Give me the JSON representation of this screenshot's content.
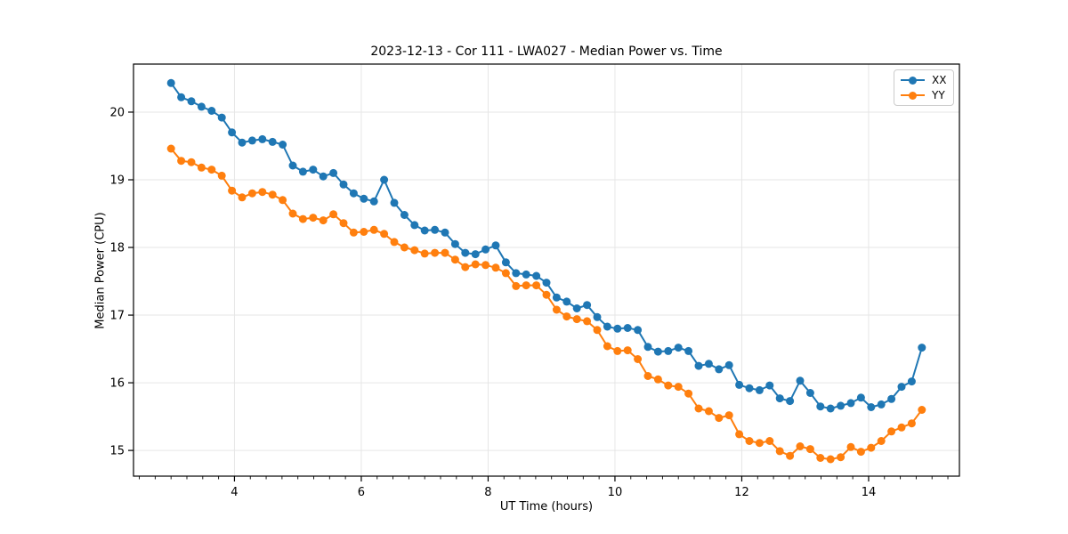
{
  "figure": {
    "background": "#ffffff"
  },
  "chart_data": {
    "type": "line",
    "title": "2023-12-13 - Cor 111 - LWA027 - Median Power vs. Time",
    "xlabel": "UT Time (hours)",
    "ylabel": "Median Power (CPU)",
    "xlim": [
      2.408,
      15.432
    ],
    "ylim": [
      14.62,
      20.71
    ],
    "grid": true,
    "grid_color": "#e6e6e6",
    "spine_color": "#000000",
    "legend_position": "upper right",
    "x_major_ticks": [
      4,
      6,
      8,
      10,
      12,
      14
    ],
    "x_minor_tick_step": 0.25,
    "y_major_ticks": [
      15,
      16,
      17,
      18,
      19,
      20
    ],
    "x": [
      3.0,
      3.16,
      3.32,
      3.48,
      3.64,
      3.8,
      3.96,
      4.12,
      4.28,
      4.44,
      4.6,
      4.76,
      4.92,
      5.08,
      5.24,
      5.4,
      5.56,
      5.72,
      5.88,
      6.04,
      6.2,
      6.36,
      6.52,
      6.68,
      6.84,
      7.0,
      7.16,
      7.32,
      7.48,
      7.64,
      7.8,
      7.96,
      8.12,
      8.28,
      8.44,
      8.6,
      8.76,
      8.92,
      9.08,
      9.24,
      9.4,
      9.56,
      9.72,
      9.88,
      10.04,
      10.2,
      10.36,
      10.52,
      10.68,
      10.84,
      11.0,
      11.16,
      11.32,
      11.48,
      11.64,
      11.8,
      11.96,
      12.12,
      12.28,
      12.44,
      12.6,
      12.76,
      12.92,
      13.08,
      13.24,
      13.4,
      13.56,
      13.72,
      13.88,
      14.04,
      14.2,
      14.36,
      14.52,
      14.68,
      14.84
    ],
    "series": [
      {
        "name": "XX",
        "color": "#1f77b4",
        "values": [
          20.43,
          20.22,
          20.16,
          20.08,
          20.02,
          19.92,
          19.7,
          19.55,
          19.58,
          19.6,
          19.56,
          19.52,
          19.21,
          19.12,
          19.15,
          19.05,
          19.1,
          18.93,
          18.8,
          18.72,
          18.68,
          19.0,
          18.66,
          18.48,
          18.33,
          18.25,
          18.26,
          18.22,
          18.05,
          17.92,
          17.9,
          17.97,
          18.03,
          17.78,
          17.62,
          17.6,
          17.58,
          17.48,
          17.26,
          17.2,
          17.1,
          17.15,
          16.97,
          16.83,
          16.8,
          16.81,
          16.78,
          16.53,
          16.46,
          16.47,
          16.52,
          16.47,
          16.25,
          16.28,
          16.2,
          16.26,
          15.97,
          15.92,
          15.89,
          15.96,
          15.77,
          15.73,
          16.03,
          15.85,
          15.65,
          15.62,
          15.66,
          15.7,
          15.78,
          15.64,
          15.68,
          15.76,
          15.94,
          16.02,
          16.52
        ]
      },
      {
        "name": "YY",
        "color": "#ff7f0e",
        "values": [
          19.46,
          19.28,
          19.26,
          19.18,
          19.15,
          19.06,
          18.84,
          18.74,
          18.8,
          18.82,
          18.78,
          18.7,
          18.5,
          18.42,
          18.44,
          18.4,
          18.49,
          18.36,
          18.22,
          18.23,
          18.26,
          18.2,
          18.08,
          18.0,
          17.96,
          17.91,
          17.92,
          17.92,
          17.82,
          17.71,
          17.75,
          17.74,
          17.7,
          17.62,
          17.43,
          17.44,
          17.44,
          17.3,
          17.08,
          16.98,
          16.94,
          16.91,
          16.78,
          16.54,
          16.47,
          16.48,
          16.35,
          16.1,
          16.05,
          15.96,
          15.94,
          15.84,
          15.62,
          15.58,
          15.48,
          15.52,
          15.24,
          15.14,
          15.11,
          15.14,
          14.99,
          14.92,
          15.06,
          15.02,
          14.89,
          14.87,
          14.9,
          15.05,
          14.98,
          15.04,
          15.14,
          15.28,
          15.34,
          15.4,
          15.6
        ]
      }
    ]
  },
  "legend": {
    "items": [
      {
        "label": "XX",
        "color": "#1f77b4"
      },
      {
        "label": "YY",
        "color": "#ff7f0e"
      }
    ]
  }
}
